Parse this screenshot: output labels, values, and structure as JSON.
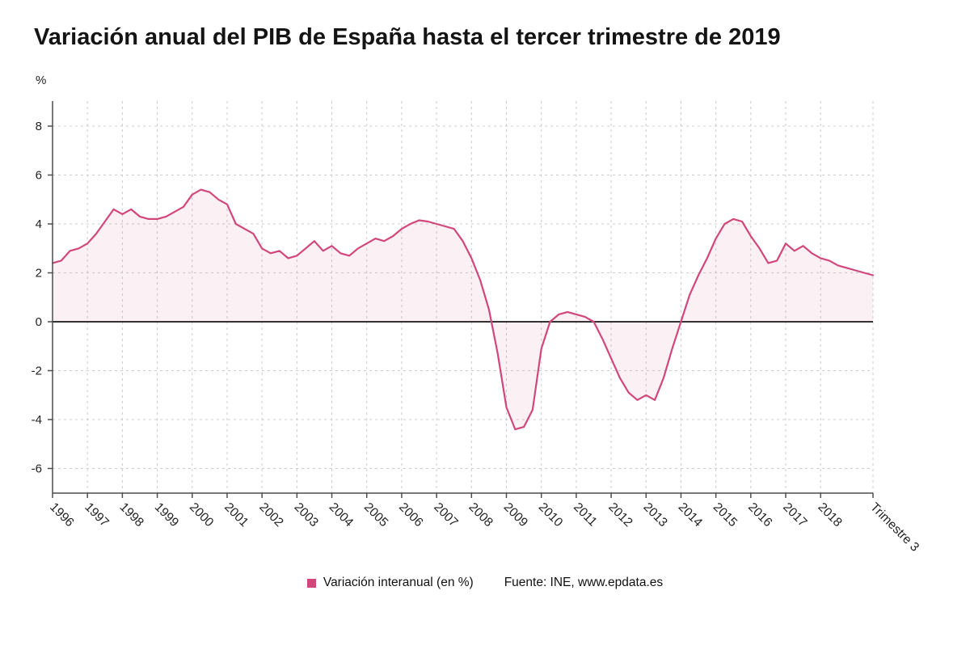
{
  "title": "Variación anual del PIB de España hasta el tercer trimestre de 2019",
  "y_axis_unit": "%",
  "legend": {
    "series_label": "Variación interanual (en %)",
    "source": "Fuente: INE, www.epdata.es"
  },
  "colors": {
    "line": "#d2477b",
    "fill": "rgba(210,71,123,0.08)",
    "zero_line": "#333333",
    "grid": "#cccccc",
    "axis": "#4d4d4d",
    "tick_text": "#222222"
  },
  "chart_data": {
    "type": "area",
    "title": "Variación anual del PIB de España hasta el tercer trimestre de 2019",
    "xlabel": "",
    "ylabel": "%",
    "ylim": [
      -7,
      9
    ],
    "yticks": [
      8,
      6,
      4,
      2,
      0,
      -2,
      -4,
      -6
    ],
    "grid": true,
    "legend_position": "bottom",
    "frequency": "quarterly",
    "x_start": "1996 T1",
    "x_end": "2019 T3",
    "x_year_labels": [
      "1996",
      "1997",
      "1998",
      "1999",
      "2000",
      "2001",
      "2002",
      "2003",
      "2004",
      "2005",
      "2006",
      "2007",
      "2008",
      "2009",
      "2010",
      "2011",
      "2012",
      "2013",
      "2014",
      "2015",
      "2016",
      "2017",
      "2018"
    ],
    "x_final_label": "Trimestre 3",
    "series": [
      {
        "name": "Variación interanual (en %)",
        "values": [
          2.4,
          2.5,
          2.9,
          3.0,
          3.2,
          3.6,
          4.1,
          4.6,
          4.4,
          4.6,
          4.3,
          4.2,
          4.2,
          4.3,
          4.5,
          4.7,
          5.2,
          5.4,
          5.3,
          5.0,
          4.8,
          4.0,
          3.8,
          3.6,
          3.0,
          2.8,
          2.9,
          2.6,
          2.7,
          3.0,
          3.3,
          2.9,
          3.1,
          2.8,
          2.7,
          3.0,
          3.2,
          3.4,
          3.3,
          3.5,
          3.8,
          4.0,
          4.15,
          4.1,
          4.0,
          3.9,
          3.8,
          3.3,
          2.6,
          1.7,
          0.5,
          -1.3,
          -3.5,
          -4.4,
          -4.3,
          -3.6,
          -1.1,
          0.0,
          0.3,
          0.4,
          0.3,
          0.2,
          0.0,
          -0.7,
          -1.5,
          -2.3,
          -2.9,
          -3.2,
          -3.0,
          -3.2,
          -2.3,
          -1.1,
          0.0,
          1.1,
          1.9,
          2.6,
          3.4,
          4.0,
          4.2,
          4.1,
          3.5,
          3.0,
          2.4,
          2.5,
          3.2,
          2.9,
          3.1,
          2.8,
          2.6,
          2.5,
          2.3,
          2.2,
          2.1,
          2.0,
          1.9
        ]
      }
    ],
    "source": "Fuente: INE, www.epdata.es"
  }
}
